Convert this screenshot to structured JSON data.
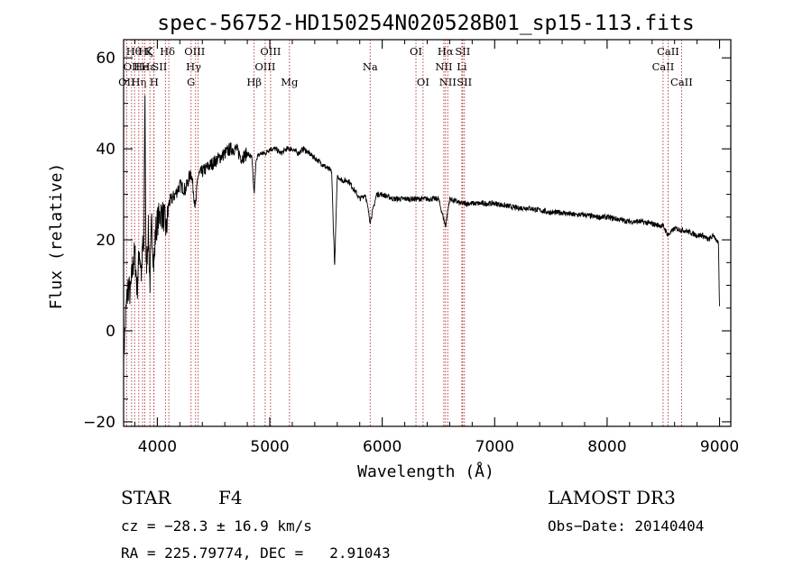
{
  "chart_data": {
    "type": "line",
    "title": "spec-56752-HD150254N020528B01_sp15-113.fits",
    "xlabel": "Wavelength (Å)",
    "ylabel": "Flux (relative)",
    "xlim": [
      3700,
      9100
    ],
    "ylim": [
      -21,
      64
    ],
    "x_ticks": [
      4000,
      5000,
      6000,
      7000,
      8000,
      9000
    ],
    "x_tick_labels": [
      "4000",
      "5000",
      "6000",
      "7000",
      "8000",
      "9000"
    ],
    "y_ticks": [
      -20,
      0,
      20,
      40,
      60
    ],
    "y_tick_labels": [
      "−20",
      "0",
      "20",
      "40",
      "60"
    ],
    "series": [
      {
        "name": "flux",
        "x": [
          3700,
          3720,
          3740,
          3760,
          3780,
          3800,
          3820,
          3840,
          3860,
          3870,
          3880,
          3889,
          3900,
          3920,
          3934,
          3950,
          3969,
          3985,
          4000,
          4030,
          4060,
          4080,
          4102,
          4130,
          4160,
          4200,
          4250,
          4300,
          4340,
          4360,
          4400,
          4450,
          4500,
          4550,
          4600,
          4650,
          4700,
          4750,
          4800,
          4840,
          4861,
          4880,
          4920,
          4960,
          5000,
          5050,
          5100,
          5150,
          5200,
          5250,
          5300,
          5350,
          5400,
          5450,
          5500,
          5550,
          5577,
          5600,
          5650,
          5700,
          5750,
          5800,
          5850,
          5893,
          5950,
          6000,
          6100,
          6200,
          6300,
          6400,
          6500,
          6563,
          6600,
          6700,
          6800,
          6900,
          7000,
          7100,
          7200,
          7300,
          7400,
          7500,
          7600,
          7700,
          7800,
          7900,
          8000,
          8100,
          8200,
          8300,
          8400,
          8500,
          8542,
          8600,
          8700,
          8800,
          8850,
          8900,
          8950,
          8970,
          8990,
          9000
        ],
        "values": [
          -6,
          4,
          10,
          8,
          14,
          17,
          9,
          18,
          12,
          20,
          15,
          55,
          13,
          22,
          10,
          24,
          14,
          22,
          24,
          26,
          25,
          22,
          28,
          29,
          30,
          32,
          31,
          35,
          27,
          34,
          35,
          36,
          37,
          38,
          39,
          40,
          40,
          38,
          39,
          38,
          30,
          38,
          39,
          39,
          40,
          40,
          39,
          40,
          40,
          39,
          40,
          39,
          38,
          37,
          36,
          35,
          14,
          34,
          33,
          33,
          31,
          29,
          30,
          24,
          30,
          30,
          29,
          29,
          29,
          29,
          29,
          23,
          29,
          28,
          28,
          28,
          28,
          27.5,
          27,
          27,
          26.5,
          26,
          26,
          25.5,
          25.5,
          25,
          25,
          24.5,
          24,
          24,
          23.5,
          23,
          21,
          22.5,
          22,
          21,
          21,
          20,
          21,
          20,
          19,
          5
        ]
      }
    ],
    "line_markers": [
      {
        "wl": 3727,
        "row": 0,
        "label": "OII",
        "lx": 3727
      },
      {
        "wl": 3771,
        "row": 1,
        "label": "OII",
        "lx": 3771
      },
      {
        "wl": 3798,
        "row": 2,
        "label": "Hθ",
        "lx": 3790
      },
      {
        "wl": 3835,
        "row": 0,
        "label": "Hη",
        "lx": 3835
      },
      {
        "wl": 3869,
        "row": 1,
        "label": "He",
        "lx": 3858
      },
      {
        "wl": 3889,
        "row": 2,
        "label": "Hζ",
        "lx": 3898
      },
      {
        "wl": 3934,
        "row": 2,
        "label": "K",
        "lx": 3925
      },
      {
        "wl": 3969,
        "row": 0,
        "label": "H",
        "lx": 3972
      },
      {
        "wl": 3970,
        "row": 1,
        "label": "Hε",
        "lx": 3920
      },
      {
        "wl": 4072,
        "row": 1,
        "label": "SII",
        "lx": 4020
      },
      {
        "wl": 4102,
        "row": 2,
        "label": "Hδ",
        "lx": 4090
      },
      {
        "wl": 4300,
        "row": 0,
        "label": "G",
        "lx": 4300
      },
      {
        "wl": 4340,
        "row": 1,
        "label": "Hγ",
        "lx": 4322
      },
      {
        "wl": 4363,
        "row": 2,
        "label": "OIII",
        "lx": 4332
      },
      {
        "wl": 4861,
        "row": 0,
        "label": "Hβ",
        "lx": 4861
      },
      {
        "wl": 4959,
        "row": 1,
        "label": "OIII",
        "lx": 4959
      },
      {
        "wl": 5007,
        "row": 2,
        "label": "OIII",
        "lx": 5007
      },
      {
        "wl": 5175,
        "row": 0,
        "label": "Mg",
        "lx": 5175
      },
      {
        "wl": 5893,
        "row": 1,
        "label": "Na",
        "lx": 5893
      },
      {
        "wl": 6300,
        "row": 2,
        "label": "OI",
        "lx": 6300
      },
      {
        "wl": 6363,
        "row": 0,
        "label": "OI",
        "lx": 6363
      },
      {
        "wl": 6548,
        "row": 1,
        "label": "NII",
        "lx": 6548
      },
      {
        "wl": 6563,
        "row": 2,
        "label": "Hα",
        "lx": 6563
      },
      {
        "wl": 6583,
        "row": 0,
        "label": "NII",
        "lx": 6583
      },
      {
        "wl": 6708,
        "row": 1,
        "label": "Li",
        "lx": 6708
      },
      {
        "wl": 6716,
        "row": 2,
        "label": "SII",
        "lx": 6716
      },
      {
        "wl": 6731,
        "row": 0,
        "label": "SII",
        "lx": 6731
      },
      {
        "wl": 8498,
        "row": 1,
        "label": "CaII",
        "lx": 8498
      },
      {
        "wl": 8542,
        "row": 2,
        "label": "CaII",
        "lx": 8542
      },
      {
        "wl": 8662,
        "row": 0,
        "label": "CaII",
        "lx": 8662
      }
    ]
  },
  "info": {
    "object_class": "STAR",
    "subclass": "F4",
    "cz": "cz = −28.3 ± 16.9 km/s",
    "radec": "RA = 225.79774, DEC =   2.91043",
    "survey": "LAMOST DR3",
    "obs_date": "Obs−Date: 20140404"
  },
  "colors": {
    "marker_line": "#b03030",
    "spectrum": "#000000",
    "axes": "#000000"
  }
}
